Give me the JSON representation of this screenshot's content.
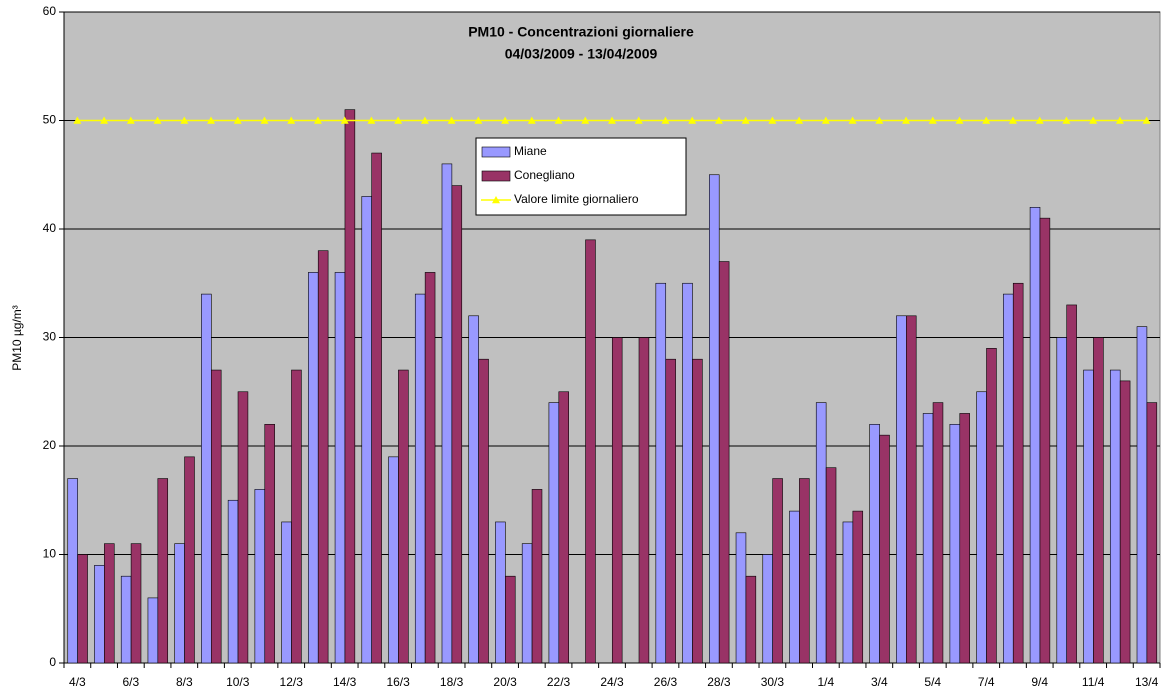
{
  "chart_data": {
    "type": "bar",
    "title": "PM10 - Concentrazioni giornaliere",
    "subtitle": "04/03/2009 - 13/04/2009",
    "y_label": "PM10 µg/m³",
    "categories": [
      "4/3",
      null,
      "6/3",
      null,
      "8/3",
      null,
      "10/3",
      null,
      "12/3",
      null,
      "14/3",
      null,
      "16/3",
      null,
      "18/3",
      null,
      "20/3",
      null,
      "22/3",
      null,
      "24/3",
      null,
      "26/3",
      null,
      "28/3",
      null,
      "30/3",
      null,
      "1/4",
      null,
      "3/4",
      null,
      "5/4",
      null,
      "7/4",
      null,
      "9/4",
      null,
      "11/4",
      null,
      "13/4"
    ],
    "series": [
      {
        "name": "Miane",
        "color": "#9999ff",
        "values": [
          17,
          9,
          8,
          6,
          11,
          34,
          15,
          16,
          13,
          36,
          36,
          43,
          19,
          34,
          46,
          32,
          13,
          11,
          24,
          null,
          null,
          null,
          35,
          35,
          45,
          12,
          10,
          14,
          24,
          13,
          22,
          32,
          23,
          22,
          25,
          34,
          42,
          30,
          27,
          27,
          31
        ]
      },
      {
        "name": "Conegliano",
        "color": "#993366",
        "values": [
          10,
          11,
          11,
          17,
          19,
          27,
          25,
          22,
          27,
          38,
          51,
          47,
          27,
          36,
          44,
          28,
          8,
          16,
          25,
          39,
          30,
          30,
          28,
          28,
          37,
          8,
          17,
          17,
          18,
          14,
          21,
          32,
          24,
          23,
          29,
          35,
          41,
          33,
          30,
          26,
          24
        ]
      },
      {
        "name": "Valore limite giornaliero",
        "type": "line",
        "color": "#ffff00",
        "values": [
          50,
          50,
          50,
          50,
          50,
          50,
          50,
          50,
          50,
          50,
          50,
          50,
          50,
          50,
          50,
          50,
          50,
          50,
          50,
          50,
          50,
          50,
          50,
          50,
          50,
          50,
          50,
          50,
          50,
          50,
          50,
          50,
          50,
          50,
          50,
          50,
          50,
          50,
          50,
          50,
          50
        ]
      }
    ],
    "ylim": [
      0,
      60
    ],
    "yticks": [
      0,
      10,
      20,
      30,
      40,
      50,
      60
    ],
    "grid": true,
    "plot_background": "#c0c0c0"
  }
}
